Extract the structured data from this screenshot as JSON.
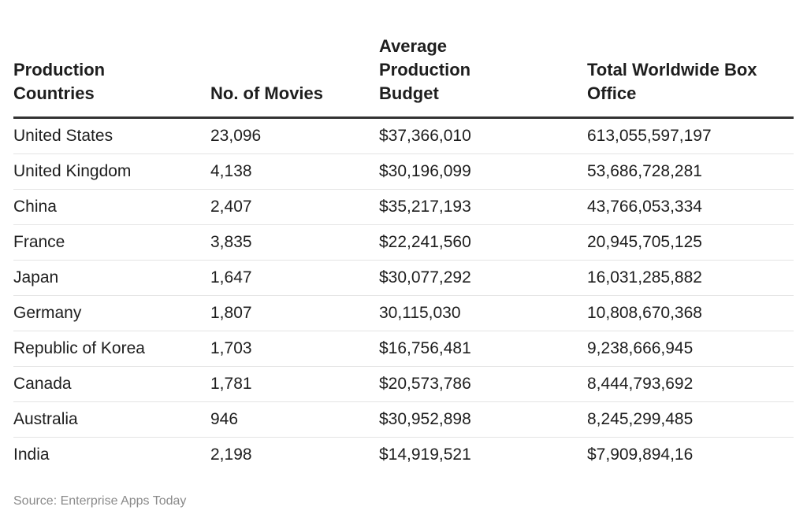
{
  "table": {
    "headers": [
      "Production Countries",
      "No. of Movies",
      "Average Production Budget",
      "Total Worldwide Box Office"
    ],
    "rows": [
      [
        "United States",
        "23,096",
        "$37,366,010",
        "613,055,597,197"
      ],
      [
        "United Kingdom",
        "4,138",
        "$30,196,099",
        "53,686,728,281"
      ],
      [
        "China",
        "2,407",
        "$35,217,193",
        "43,766,053,334"
      ],
      [
        "France",
        "3,835",
        "$22,241,560",
        "20,945,705,125"
      ],
      [
        "Japan",
        "1,647",
        "$30,077,292",
        "16,031,285,882"
      ],
      [
        "Germany",
        "1,807",
        "30,115,030",
        "10,808,670,368"
      ],
      [
        "Republic of Korea",
        "1,703",
        "$16,756,481",
        "9,238,666,945"
      ],
      [
        "Canada",
        "1,781",
        "$20,573,786",
        "8,444,793,692"
      ],
      [
        "Australia",
        "946",
        "$30,952,898",
        "8,245,299,485"
      ],
      [
        "India",
        "2,198",
        "$14,919,521",
        "$7,909,894,16"
      ]
    ]
  },
  "source": "Source: Enterprise Apps Today"
}
